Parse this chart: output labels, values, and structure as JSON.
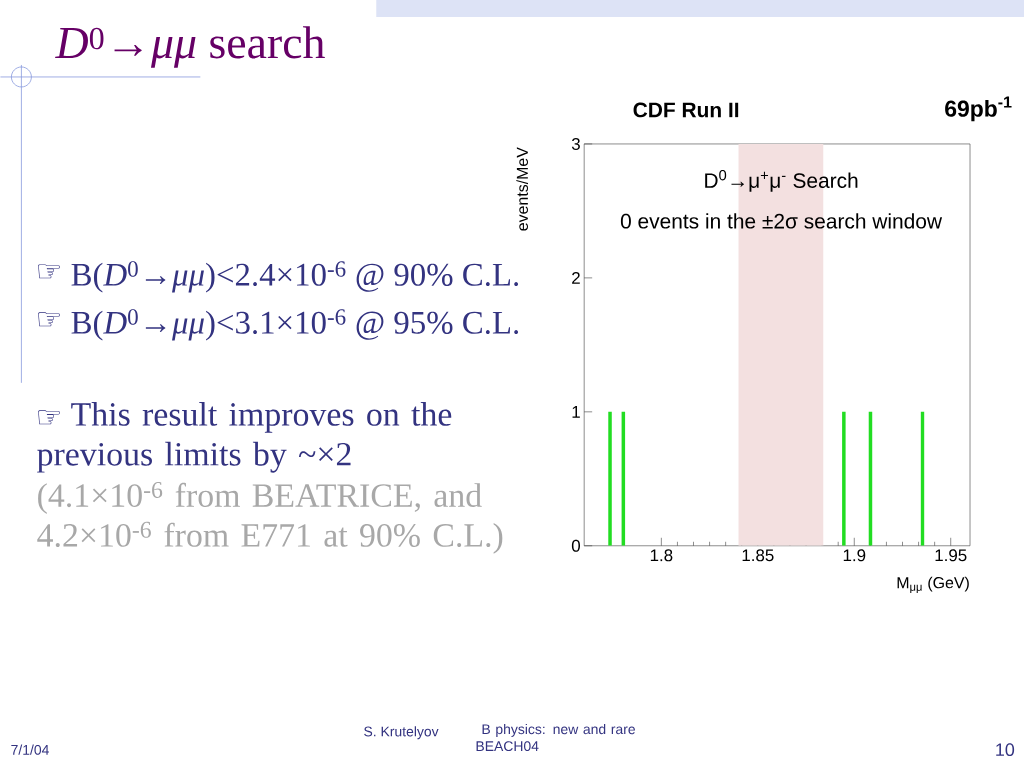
{
  "chart_data": {
    "type": "bar",
    "title": "CDF Run II",
    "subtitle": "69pb$^{-1}$",
    "xlabel": "M$_{μμ}$ (GeV)",
    "ylabel": "events/MeV",
    "x": [
      1.7734,
      1.7803,
      1.8946,
      1.9084,
      1.9354
    ],
    "values": [
      1,
      1,
      1,
      1,
      1
    ],
    "color": "#22dd22",
    "xlim": [
      1.76,
      1.96
    ],
    "ylim": [
      0,
      3
    ],
    "xticks": [
      1.8,
      1.85,
      1.9,
      1.95
    ],
    "yticks": [
      0,
      1,
      2,
      3
    ],
    "bands": [
      {
        "axis": "x",
        "from": 1.84,
        "to": 1.884,
        "color": "#f3e0e0"
      }
    ],
    "annotations": [
      "D$^{0}$→μ$^{+}$μ$^{-}$ Search",
      "0 events in the ±2σ search window",
      "*D*$^{0}$→*μμ* search",
      "B(*D*$^{0}$→*μμ*)<2.4×10$^{-6}$ @ 90% C.L.",
      "B(*D*$^{0}$→*μμ*)<3.1×10$^{-6}$ @ 95% C.L.",
      "This result improves on the previous limits by ~×2",
      "(4.1×10$^{-6}$ from BEATRICE, and 4.2×10$^{-6}$ from E771 at 90% C.L.)",
      "7/1/04",
      "S. Krutelyov",
      "B physics: new and rare BEACH04",
      "10",
      "☞",
      "☞",
      "☞"
    ]
  }
}
